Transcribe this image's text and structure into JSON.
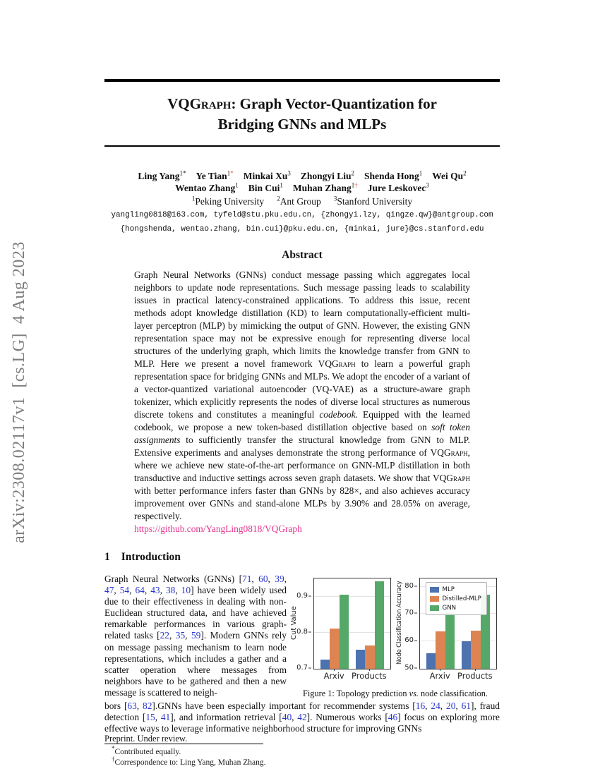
{
  "page": {
    "sidebar_text": "arXiv:2308.02117v1  [cs.LG]  4 Aug 2023",
    "preprint_note": "Preprint. Under review."
  },
  "title": {
    "smallcaps": "VQGraph",
    "rest_line1": ": Graph Vector-Quantization for",
    "line2": "Bridging GNNs and MLPs"
  },
  "authors": {
    "row1": [
      {
        "name": "Ling Yang",
        "sup": "1*",
        "red": ""
      },
      {
        "name": "Ye Tian",
        "sup": "1",
        "red": "*"
      },
      {
        "name": "Minkai Xu",
        "sup": "3",
        "red": ""
      },
      {
        "name": "Zhongyi Liu",
        "sup": "2",
        "red": ""
      },
      {
        "name": "Shenda Hong",
        "sup": "1",
        "red": ""
      },
      {
        "name": "Wei Qu",
        "sup": "2",
        "red": ""
      }
    ],
    "row2": [
      {
        "name": "Wentao Zhang",
        "sup": "1",
        "red": ""
      },
      {
        "name": "Bin Cui",
        "sup": "1",
        "red": ""
      },
      {
        "name": "Muhan Zhang",
        "sup": "1",
        "red": "†"
      },
      {
        "name": "Jure Leskovec",
        "sup": "3",
        "red": ""
      }
    ],
    "affiliations": [
      {
        "sup": "1",
        "name": "Peking University"
      },
      {
        "sup": "2",
        "name": "Ant Group"
      },
      {
        "sup": "3",
        "name": "Stanford University"
      }
    ],
    "emails_line1": "yangling0818@163.com, tyfeld@stu.pku.edu.cn, {zhongyi.lzy, qingze.qw}@antgroup.com",
    "emails_line2": "{hongshenda, wentao.zhang, bin.cui}@pku.edu.cn, {minkai, jure}@cs.stanford.edu"
  },
  "abstract": {
    "heading": "Abstract",
    "segments": [
      {
        "t": "Graph Neural Networks (GNNs) conduct message passing which aggregates local neighbors to update node representations. Such message passing leads to scalability issues in practical latency-constrained applications. To address this issue, recent methods adopt knowledge distillation (KD) to learn computationally-efficient multi-layer perceptron (MLP) by mimicking the output of GNN. However, the existing GNN representation space may not be expressive enough for representing diverse local structures of the underlying graph, which limits the knowledge transfer from GNN to MLP. Here we present a novel framework ",
        "s": "p"
      },
      {
        "t": "VQGraph",
        "s": "sc"
      },
      {
        "t": " to learn a powerful graph representation space for bridging GNNs and MLPs. We adopt the encoder of a variant of a vector-quantized variational autoencoder (VQ-VAE) as a structure-aware graph tokenizer, which explicitly represents the nodes of diverse local structures as numerous discrete tokens and constitutes a meaningful ",
        "s": "p"
      },
      {
        "t": "codebook",
        "s": "i"
      },
      {
        "t": ". Equipped with the learned codebook, we propose a new token-based distillation objective based on ",
        "s": "p"
      },
      {
        "t": "soft token assignments",
        "s": "i"
      },
      {
        "t": " to sufficiently transfer the structural knowledge from GNN to MLP. Extensive experiments and analyses demonstrate the strong performance of ",
        "s": "p"
      },
      {
        "t": "VQGraph",
        "s": "sc"
      },
      {
        "t": ", where we achieve new state-of-the-art performance on GNN-MLP distillation in both transductive and inductive settings across seven graph datasets. We show that ",
        "s": "p"
      },
      {
        "t": "VQGraph",
        "s": "sc"
      },
      {
        "t": " with better performance infers faster than GNNs by 828×, and also achieves accuracy improvement over GNNs and stand-alone MLPs by 3.90% and 28.05% on average, respectively.",
        "s": "p"
      }
    ],
    "link": "https://github.com/YangLing0818/VQGraph"
  },
  "introduction": {
    "number": "1",
    "heading": "Introduction",
    "column_segments": [
      {
        "t": "Graph Neural Networks (GNNs) [",
        "s": "p"
      },
      {
        "t": "71",
        "s": "c"
      },
      {
        "t": ", ",
        "s": "p"
      },
      {
        "t": "60",
        "s": "c"
      },
      {
        "t": ", ",
        "s": "p"
      },
      {
        "t": "39",
        "s": "c"
      },
      {
        "t": ", ",
        "s": "p"
      },
      {
        "t": "47",
        "s": "c"
      },
      {
        "t": ", ",
        "s": "p"
      },
      {
        "t": "54",
        "s": "c"
      },
      {
        "t": ", ",
        "s": "p"
      },
      {
        "t": "64",
        "s": "c"
      },
      {
        "t": ", ",
        "s": "p"
      },
      {
        "t": "43",
        "s": "c"
      },
      {
        "t": ", ",
        "s": "p"
      },
      {
        "t": "38",
        "s": "c"
      },
      {
        "t": ", ",
        "s": "p"
      },
      {
        "t": "10",
        "s": "c"
      },
      {
        "t": "] have been widely used due to their effectiveness in dealing with non-Euclidean structured data, and have achieved remarkable performances in various graph-related tasks [",
        "s": "p"
      },
      {
        "t": "22",
        "s": "c"
      },
      {
        "t": ", ",
        "s": "p"
      },
      {
        "t": "35",
        "s": "c"
      },
      {
        "t": ", ",
        "s": "p"
      },
      {
        "t": "59",
        "s": "c"
      },
      {
        "t": "]. Modern GNNs rely on message passing mechanism to learn node representations, which includes a gather and a scatter operation where messages from neighbors have to be gathered and then a new message is scattered to neigh-",
        "s": "p"
      }
    ],
    "full_segments": [
      {
        "t": "bors [",
        "s": "p"
      },
      {
        "t": "63",
        "s": "c"
      },
      {
        "t": ", ",
        "s": "p"
      },
      {
        "t": "82",
        "s": "c"
      },
      {
        "t": "].GNNs have been especially important for recommender systems [",
        "s": "p"
      },
      {
        "t": "16",
        "s": "c"
      },
      {
        "t": ", ",
        "s": "p"
      },
      {
        "t": "24",
        "s": "c"
      },
      {
        "t": ", ",
        "s": "p"
      },
      {
        "t": "20",
        "s": "c"
      },
      {
        "t": ", ",
        "s": "p"
      },
      {
        "t": "61",
        "s": "c"
      },
      {
        "t": "], fraud detection [",
        "s": "p"
      },
      {
        "t": "15",
        "s": "c"
      },
      {
        "t": ", ",
        "s": "p"
      },
      {
        "t": "41",
        "s": "c"
      },
      {
        "t": "], and information retrieval [",
        "s": "p"
      },
      {
        "t": "40",
        "s": "c"
      },
      {
        "t": ", ",
        "s": "p"
      },
      {
        "t": "42",
        "s": "c"
      },
      {
        "t": "]. Numerous works [",
        "s": "p"
      },
      {
        "t": "46",
        "s": "c"
      },
      {
        "t": "] focus on exploring more effective ways to leverage informative neighborhood structure for improving GNNs",
        "s": "p"
      }
    ]
  },
  "figure1": {
    "caption_prefix": "Figure 1: Topology prediction ",
    "caption_italic": "vs.",
    "caption_suffix": " node classification."
  },
  "footnotes": {
    "items": [
      {
        "mark": "*",
        "text": "Contributed equally."
      },
      {
        "mark": "†",
        "text": "Correspondence to: Ling Yang, Muhan Zhang."
      }
    ]
  },
  "chart_data": [
    {
      "type": "bar",
      "title": "",
      "ylabel": "Cut Value",
      "xlabel": "",
      "categories": [
        "Arxiv",
        "Products"
      ],
      "series": [
        {
          "name": "MLP",
          "color": "#4C72B0",
          "values": [
            0.725,
            0.752
          ]
        },
        {
          "name": "Distilled-MLP",
          "color": "#DD8452",
          "values": [
            0.812,
            0.765
          ]
        },
        {
          "name": "GNN",
          "color": "#55A868",
          "values": [
            0.905,
            0.942
          ]
        }
      ],
      "ylim": [
        0.7,
        0.95
      ],
      "yticks": [
        0.7,
        0.8,
        0.9
      ],
      "grid": true,
      "legend": false
    },
    {
      "type": "bar",
      "title": "",
      "ylabel": "Node Classification Accuracy",
      "xlabel": "",
      "categories": [
        "Arxiv",
        "Products"
      ],
      "series": [
        {
          "name": "MLP",
          "color": "#4C72B0",
          "values": [
            55.7,
            60.0
          ]
        },
        {
          "name": "Distilled-MLP",
          "color": "#DD8452",
          "values": [
            63.7,
            63.8
          ]
        },
        {
          "name": "GNN",
          "color": "#55A868",
          "values": [
            70.7,
            77.2
          ]
        }
      ],
      "ylim": [
        50,
        83
      ],
      "yticks": [
        50,
        60,
        70,
        80
      ],
      "grid": true,
      "legend": true,
      "legend_position": "upper left",
      "legend_entries": [
        "MLP",
        "Distilled-MLP",
        "GNN"
      ]
    }
  ]
}
